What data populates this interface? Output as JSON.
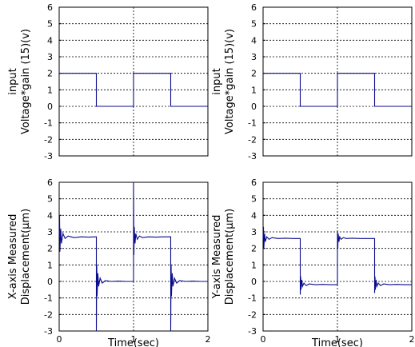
{
  "chart_data": [
    {
      "type": "line",
      "ylabel_lines": [
        "input",
        "Voltage*gain (15)(v)"
      ],
      "xlabel": "",
      "xlim": [
        0,
        2
      ],
      "ylim": [
        -3,
        6
      ],
      "xticks": [],
      "yticks": [
        "6",
        "5",
        "4",
        "3",
        "2",
        "1",
        "0",
        "-1",
        "-2",
        "-3"
      ],
      "series": [
        {
          "x": [
            0,
            0.5,
            0.5,
            1.0,
            1.0,
            1.5,
            1.5,
            2.0
          ],
          "y": [
            2,
            2,
            0,
            0,
            2,
            2,
            0,
            0
          ]
        }
      ]
    },
    {
      "type": "line",
      "ylabel_lines": [
        "input",
        "Voltage*gain (15)(v)"
      ],
      "xlabel": "",
      "xlim": [
        0,
        2
      ],
      "ylim": [
        -3,
        6
      ],
      "xticks": [],
      "yticks": [
        "6",
        "5",
        "4",
        "3",
        "2",
        "1",
        "0",
        "-1",
        "-2",
        "-3"
      ],
      "series": [
        {
          "x": [
            0,
            0.5,
            0.5,
            1.0,
            1.0,
            1.5,
            1.5,
            2.0
          ],
          "y": [
            2,
            2,
            0,
            0,
            2,
            2,
            0,
            0
          ]
        }
      ]
    },
    {
      "type": "line",
      "ylabel_lines": [
        "X-axis Measured",
        "Displacement(μm)"
      ],
      "xlabel": "Time(sec)",
      "xlim": [
        0,
        2
      ],
      "ylim": [
        -3,
        6
      ],
      "xticks": [
        "0",
        "1",
        "2"
      ],
      "yticks": [
        "6",
        "5",
        "4",
        "3",
        "2",
        "1",
        "0",
        "-1",
        "-2",
        "-3"
      ],
      "series": [
        {
          "x": [
            0,
            0.005,
            0.01,
            0.02,
            0.03,
            0.05,
            0.08,
            0.12,
            0.2,
            0.3,
            0.4,
            0.49,
            0.5,
            0.5,
            0.505,
            0.51,
            0.52,
            0.53,
            0.55,
            0.58,
            0.62,
            0.7,
            0.8,
            0.9,
            0.99,
            1.0,
            1.0,
            1.005,
            1.01,
            1.02,
            1.03,
            1.05,
            1.08,
            1.12,
            1.2,
            1.3,
            1.4,
            1.49,
            1.5,
            1.5,
            1.505,
            1.51,
            1.52,
            1.53,
            1.55,
            1.58,
            1.62,
            1.7,
            1.8,
            1.9,
            2.0
          ],
          "y": [
            2.7,
            4.0,
            1.8,
            3.2,
            2.3,
            2.9,
            2.6,
            2.75,
            2.65,
            2.7,
            2.68,
            2.7,
            2.7,
            -3.0,
            1.0,
            -0.9,
            0.5,
            -0.3,
            0.2,
            -0.1,
            0.05,
            0.0,
            0.02,
            0.0,
            0.0,
            0.0,
            6.0,
            1.6,
            3.3,
            2.3,
            2.9,
            2.55,
            2.75,
            2.65,
            2.7,
            2.68,
            2.7,
            2.7,
            2.7,
            -3.0,
            1.0,
            -0.9,
            0.5,
            -0.3,
            0.2,
            -0.1,
            0.05,
            0.0,
            0.02,
            0.0,
            0.0
          ]
        }
      ]
    },
    {
      "type": "line",
      "ylabel_lines": [
        "Y-axis Measured",
        "Displacement(μm)"
      ],
      "xlabel": "Time(sec)",
      "xlim": [
        0,
        2
      ],
      "ylim": [
        -3,
        6
      ],
      "xticks": [
        "0",
        "1",
        "2"
      ],
      "yticks": [
        "6",
        "5",
        "4",
        "3",
        "2",
        "1",
        "0",
        "-1",
        "-2",
        "-3"
      ],
      "series": [
        {
          "x": [
            0,
            0.005,
            0.01,
            0.02,
            0.03,
            0.05,
            0.08,
            0.12,
            0.2,
            0.3,
            0.4,
            0.49,
            0.5,
            0.5,
            0.505,
            0.51,
            0.52,
            0.53,
            0.55,
            0.58,
            0.62,
            0.7,
            0.8,
            0.9,
            0.99,
            1.0,
            1.0,
            1.005,
            1.01,
            1.02,
            1.03,
            1.05,
            1.08,
            1.12,
            1.2,
            1.3,
            1.4,
            1.49,
            1.5,
            1.5,
            1.505,
            1.51,
            1.52,
            1.53,
            1.55,
            1.58,
            1.62,
            1.7,
            1.8,
            1.9,
            2.0
          ],
          "y": [
            2.6,
            3.3,
            2.0,
            2.9,
            2.4,
            2.7,
            2.55,
            2.65,
            2.6,
            2.62,
            2.6,
            2.6,
            2.6,
            -0.8,
            0.3,
            -0.5,
            0.1,
            -0.3,
            -0.1,
            -0.25,
            -0.15,
            -0.2,
            -0.18,
            -0.2,
            -0.2,
            -0.2,
            3.0,
            2.0,
            2.9,
            2.4,
            2.7,
            2.55,
            2.65,
            2.6,
            2.62,
            2.6,
            2.6,
            2.6,
            2.6,
            -0.7,
            0.3,
            -0.5,
            0.1,
            -0.3,
            -0.1,
            -0.25,
            -0.15,
            -0.2,
            -0.18,
            -0.2,
            -0.2
          ]
        }
      ]
    }
  ]
}
